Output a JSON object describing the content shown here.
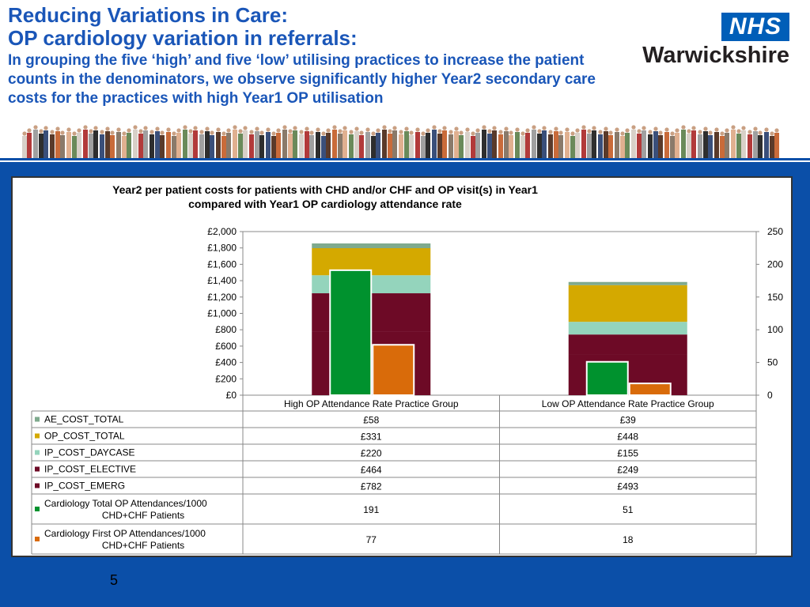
{
  "header": {
    "title_line1": "Reducing Variations in Care:",
    "title_line2": "OP cardiology variation in referrals:",
    "subtitle": "In grouping the five ‘high’ and five ‘low’ utilising practices to increase the patient counts in the denominators, we observe significantly higher Year2 secondary care costs for the practices with high Year1 OP utilisation"
  },
  "logo": {
    "badge": "NHS",
    "org": "Warwickshire",
    "badge_color": "#005eb8"
  },
  "page_number": "5",
  "chart_data": {
    "type": "bar",
    "title_line1": "Year2 per patient costs for patients with CHD and/or CHF and OP visit(s) in Year1",
    "title_line2": "compared with Year1 OP cardiology attendance rate",
    "categories": [
      "High OP Attendance Rate Practice Group",
      "Low OP Attendance Rate Practice Group"
    ],
    "left_axis": {
      "ticks": [
        "£0",
        "£200",
        "£400",
        "£600",
        "£800",
        "£1,000",
        "£1,200",
        "£1,400",
        "£1,600",
        "£1,800",
        "£2,000"
      ],
      "range": [
        0,
        2000
      ]
    },
    "right_axis": {
      "ticks": [
        "0",
        "50",
        "100",
        "150",
        "200",
        "250"
      ],
      "range": [
        0,
        250
      ]
    },
    "stacked_series": [
      {
        "name": "IP_COST_EMERG",
        "values": [
          782,
          493
        ],
        "labels": [
          "£782",
          "£493"
        ],
        "color": "#6d0a26"
      },
      {
        "name": "IP_COST_ELECTIVE",
        "values": [
          464,
          249
        ],
        "labels": [
          "£464",
          "£249"
        ],
        "color": "#6d0a26"
      },
      {
        "name": "IP_COST_DAYCASE",
        "values": [
          220,
          155
        ],
        "labels": [
          "£220",
          "£155"
        ],
        "color": "#94d4bc"
      },
      {
        "name": "OP_COST_TOTAL",
        "values": [
          331,
          448
        ],
        "labels": [
          "£331",
          "£448"
        ],
        "color": "#d4a900"
      },
      {
        "name": "AE_COST_TOTAL",
        "values": [
          58,
          39
        ],
        "labels": [
          "£58",
          "£39"
        ],
        "color": "#7faa8e"
      }
    ],
    "secondary_series": [
      {
        "name": "Cardiology Total OP Attendances/1000 CHD+CHF Patients",
        "name_line1": "Cardiology Total OP Attendances/1000",
        "name_line2": "CHD+CHF Patients",
        "values": [
          191,
          51
        ],
        "labels": [
          "191",
          "51"
        ],
        "color": "#00922e"
      },
      {
        "name": "Cardiology First OP Attendances/1000 CHD+CHF Patients",
        "name_line1": "Cardiology First OP Attendances/1000",
        "name_line2": "CHD+CHF Patients",
        "values": [
          77,
          18
        ],
        "labels": [
          "77",
          "18"
        ],
        "color": "#d96b0a"
      }
    ],
    "table_row_order": [
      "AE_COST_TOTAL",
      "OP_COST_TOTAL",
      "IP_COST_DAYCASE",
      "IP_COST_ELECTIVE",
      "IP_COST_EMERG",
      "Cardiology Total OP Attendances/1000 CHD+CHF Patients",
      "Cardiology First OP Attendances/1000 CHD+CHF Patients"
    ]
  }
}
